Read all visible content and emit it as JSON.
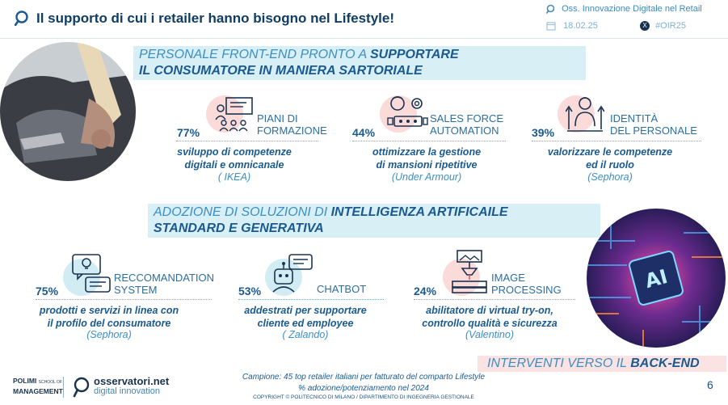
{
  "header": {
    "title": "Il supporto di cui i retailer hanno bisogno nel Lifestyle!",
    "org": "Oss. Innovazione Digitale nel Retail",
    "date": "18.02.25",
    "hashtag": "#OIR25",
    "icons": [
      "magnifier-icon",
      "calendar-icon",
      "x-social-icon"
    ]
  },
  "section1": {
    "title_prefix": "PERSONALE FRONT-END PRONTO A ",
    "title_bold1": "SUPPORTARE",
    "title_bold2": "IL CONSUMATORE IN MANIERA SARTORIALE",
    "items": [
      {
        "pct": "77%",
        "label1": "PIANI DI",
        "label2": "FORMAZIONE",
        "desc1": "sviluppo di competenze",
        "desc2": "digitali e omnicanale",
        "example": "( IKEA)",
        "icon": "training-presentation-icon"
      },
      {
        "pct": "44%",
        "label1": "SALES FORCE",
        "label2": "AUTOMATION",
        "desc1": "ottimizzare la gestione",
        "desc2": "di mansioni ripetitive",
        "example": "(Under Armour)",
        "icon": "automation-gear-icon"
      },
      {
        "pct": "39%",
        "label1": "IDENTITÀ",
        "label2": "DEL PERSONALE",
        "desc1": "valorizzare le competenze",
        "desc2": "ed il ruolo",
        "example": "(Sephora)",
        "icon": "staff-growth-icon"
      }
    ]
  },
  "section2": {
    "title_prefix": "ADOZIONE DI SOLUZIONI DI ",
    "title_bold1": "INTELLIGENZA ARTIFICAILE",
    "title_bold2": "STANDARD E GENERATIVA",
    "items": [
      {
        "pct": "75%",
        "label1": "RECCOMANDATION",
        "label2": "SYSTEM",
        "desc1": "prodotti e servizi in linea con",
        "desc2": "il profilo del consumatore",
        "example": "(Sephora)",
        "icon": "recommendation-idea-icon"
      },
      {
        "pct": "53%",
        "label1": "CHATBOT",
        "label2": "",
        "desc1": "addestrati per supportare",
        "desc2": "cliente ed employee",
        "example": "( Zalando)",
        "icon": "chatbot-icon"
      },
      {
        "pct": "24%",
        "label1": "IMAGE",
        "label2": "PROCESSING",
        "desc1": "abilitatore di virtual try-on,",
        "desc2": "controllo qualità e sicurezza",
        "example": "(Valentino)",
        "icon": "image-processing-icon"
      }
    ]
  },
  "backend": {
    "prefix": "INTERVENTI VERSO IL ",
    "bold": "BACK-END"
  },
  "footer": {
    "note1": "Campione: 45 top retailer italiani per fatturato del comparto Lifestyle",
    "note2": "% adozione/potenziamento nel 2024",
    "copyright": "COPYRIGHT © POLITECNICO DI MILANO / DIPARTIMENTO DI INGEGNERIA GESTIONALE",
    "page": "6",
    "logo_polimi_1": "POLIMI",
    "logo_polimi_2": "MANAGEMENT",
    "logo_polimi_small": "SCHOOL OF",
    "logo_oss_name": "osservatori.net",
    "logo_oss_sub": "digital innovation"
  },
  "colors": {
    "accent_dark": "#1a5a90",
    "accent_light": "#3b8fc2",
    "band_blue": "#d8eff6",
    "band_pink": "#fbe3e3",
    "icon_pink": "#fbdada",
    "icon_blue": "#d2ecf4"
  }
}
